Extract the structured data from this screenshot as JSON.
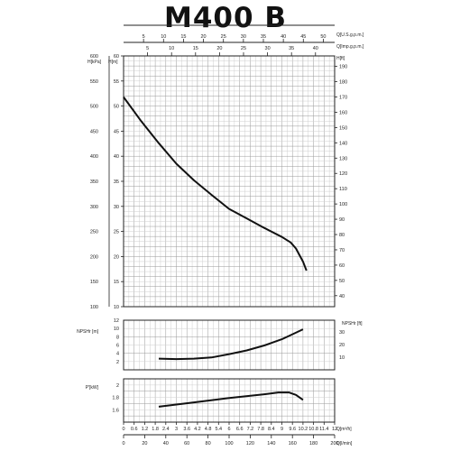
{
  "title": "M400 B",
  "chart_data": [
    {
      "panel": "head",
      "type": "line",
      "top_axes": [
        {
          "label": "Q[U.S.g.p.m.]",
          "ticks": [
            5,
            10,
            15,
            20,
            25,
            30,
            35,
            40,
            45,
            50
          ]
        },
        {
          "label": "Q[Imp.g.p.m.]",
          "ticks": [
            5,
            10,
            15,
            20,
            25,
            30,
            35,
            40
          ]
        }
      ],
      "left_axes": [
        {
          "label": "H[kPa]",
          "range": [
            100,
            600
          ],
          "ticks": [
            100,
            150,
            200,
            250,
            300,
            350,
            400,
            450,
            500,
            550,
            600
          ]
        },
        {
          "label": "H[m]",
          "range": [
            10,
            60
          ],
          "ticks": [
            10,
            15,
            20,
            25,
            30,
            35,
            40,
            45,
            50,
            55,
            60
          ]
        }
      ],
      "right_axis": {
        "label": "H[ft]",
        "range": [
          30,
          200
        ],
        "ticks": [
          40,
          50,
          60,
          70,
          80,
          90,
          100,
          110,
          120,
          130,
          140,
          150,
          160,
          170,
          180,
          190
        ]
      },
      "grid": true,
      "series": [
        {
          "x": [
            0,
            1,
            2,
            3,
            4,
            5,
            6,
            7,
            8,
            9,
            9.5,
            9.8,
            10.2,
            10.4
          ],
          "y": [
            51.8,
            47,
            42.6,
            38.5,
            35.2,
            32.3,
            29.5,
            27.6,
            25.7,
            23.9,
            22.8,
            21.6,
            19.0,
            17.2
          ]
        }
      ]
    },
    {
      "panel": "npsh",
      "type": "line",
      "left_axis": {
        "label": "NPSHr [m]",
        "range": [
          0,
          12
        ],
        "ticks": [
          2,
          4,
          6,
          8,
          10,
          12
        ]
      },
      "right_axis": {
        "label": "NPSHr [ft]",
        "range": [
          0,
          39.4
        ],
        "ticks": [
          10,
          20,
          30
        ]
      },
      "grid": true,
      "series": [
        {
          "x": [
            2.0,
            3.0,
            4.0,
            5.0,
            6.0,
            7.0,
            8.0,
            9.0,
            10.2
          ],
          "y": [
            2.7,
            2.6,
            2.7,
            3.0,
            3.8,
            4.7,
            5.9,
            7.4,
            9.8
          ]
        }
      ]
    },
    {
      "panel": "power",
      "type": "line",
      "left_axis": {
        "label": "P'[kW]",
        "range": [
          1.4,
          2.1
        ],
        "ticks": [
          1.6,
          1.8,
          2
        ]
      },
      "x_axes": [
        {
          "label": "Q[m³/h]",
          "ticks": [
            "0",
            "0.6",
            "1.2",
            "1.8",
            "2.4",
            "3",
            "3.6",
            "4.2",
            "4.8",
            "5.4",
            "6",
            "6.6",
            "7.2",
            "7.8",
            "8.4",
            "9",
            "9.6",
            "10.2",
            "10.8",
            "11.4",
            "12"
          ]
        },
        {
          "label": "Q[l/min]",
          "ticks": [
            "0",
            "20",
            "40",
            "60",
            "80",
            "100",
            "120",
            "140",
            "160",
            "180",
            "200"
          ]
        }
      ],
      "grid": true,
      "series": [
        {
          "x": [
            2.0,
            4.0,
            6.0,
            8.0,
            8.8,
            9.4,
            9.8,
            10.2
          ],
          "y": [
            1.65,
            1.72,
            1.79,
            1.85,
            1.88,
            1.88,
            1.84,
            1.76
          ]
        }
      ]
    }
  ]
}
